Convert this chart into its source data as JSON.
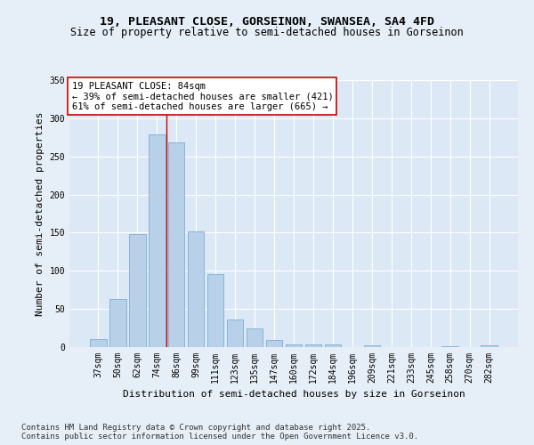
{
  "title_line1": "19, PLEASANT CLOSE, GORSEINON, SWANSEA, SA4 4FD",
  "title_line2": "Size of property relative to semi-detached houses in Gorseinon",
  "xlabel": "Distribution of semi-detached houses by size in Gorseinon",
  "ylabel": "Number of semi-detached properties",
  "categories": [
    "37sqm",
    "50sqm",
    "62sqm",
    "74sqm",
    "86sqm",
    "99sqm",
    "111sqm",
    "123sqm",
    "135sqm",
    "147sqm",
    "160sqm",
    "172sqm",
    "184sqm",
    "196sqm",
    "209sqm",
    "221sqm",
    "233sqm",
    "245sqm",
    "258sqm",
    "270sqm",
    "282sqm"
  ],
  "values": [
    11,
    63,
    148,
    279,
    268,
    152,
    96,
    36,
    24,
    9,
    4,
    3,
    3,
    0,
    2,
    0,
    0,
    0,
    1,
    0,
    2
  ],
  "bar_color": "#b8d0e8",
  "bar_edge_color": "#7aafd4",
  "vline_x": 3.5,
  "vline_color": "#cc0000",
  "annotation_title": "19 PLEASANT CLOSE: 84sqm",
  "annotation_line2": "← 39% of semi-detached houses are smaller (421)",
  "annotation_line3": "61% of semi-detached houses are larger (665) →",
  "annotation_box_facecolor": "#ffffff",
  "annotation_box_edgecolor": "#cc0000",
  "ylim": [
    0,
    350
  ],
  "yticks": [
    0,
    50,
    100,
    150,
    200,
    250,
    300,
    350
  ],
  "background_color": "#e6eef7",
  "plot_background_color": "#dce8f5",
  "grid_color": "#ffffff",
  "footer_line1": "Contains HM Land Registry data © Crown copyright and database right 2025.",
  "footer_line2": "Contains public sector information licensed under the Open Government Licence v3.0.",
  "title_fontsize": 9.5,
  "subtitle_fontsize": 8.5,
  "axis_label_fontsize": 8,
  "tick_fontsize": 7,
  "annotation_fontsize": 7.5,
  "footer_fontsize": 6.5
}
